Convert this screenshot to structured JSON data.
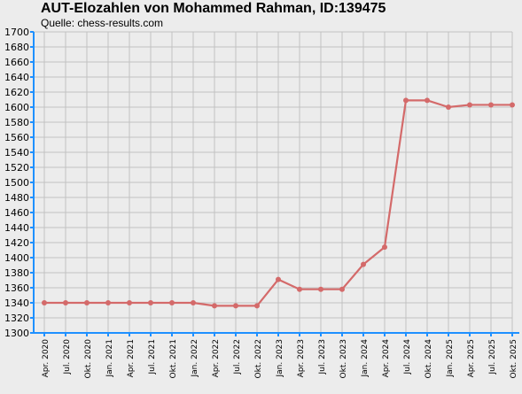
{
  "chart_data": {
    "type": "line",
    "title": "AUT-Elozahlen von Mohammed Rahman, ID:139475",
    "subtitle": "Quelle: chess-results.com",
    "categories": [
      "Apr. 2020",
      "Jul. 2020",
      "Okt. 2020",
      "Jan. 2021",
      "Apr. 2021",
      "Jul. 2021",
      "Okt. 2021",
      "Jan. 2022",
      "Apr. 2022",
      "Jul. 2022",
      "Okt. 2022",
      "Jan. 2023",
      "Apr. 2023",
      "Jul. 2023",
      "Okt. 2023",
      "Jan. 2024",
      "Apr. 2024",
      "Jul. 2024",
      "Okt. 2024",
      "Jan. 2025",
      "Apr. 2025",
      "Jul. 2025",
      "Okt. 2025"
    ],
    "series": [
      {
        "values": [
          1340,
          1340,
          1340,
          1340,
          1340,
          1340,
          1340,
          1340,
          1336,
          1336,
          1336,
          1371,
          1358,
          1358,
          1358,
          1391,
          1414,
          1609,
          1609,
          1600,
          1603,
          1603,
          1603
        ]
      }
    ],
    "yticks": [
      1300,
      1320,
      1340,
      1360,
      1380,
      1400,
      1420,
      1440,
      1460,
      1480,
      1500,
      1520,
      1540,
      1560,
      1580,
      1600,
      1620,
      1640,
      1660,
      1680,
      1700
    ],
    "ylim": [
      1300,
      1700
    ],
    "grid": true,
    "colors": {
      "line": "#d46a6a",
      "axis": "#1e90ff",
      "grid": "#c2c2c2",
      "background": "#ececec"
    }
  }
}
